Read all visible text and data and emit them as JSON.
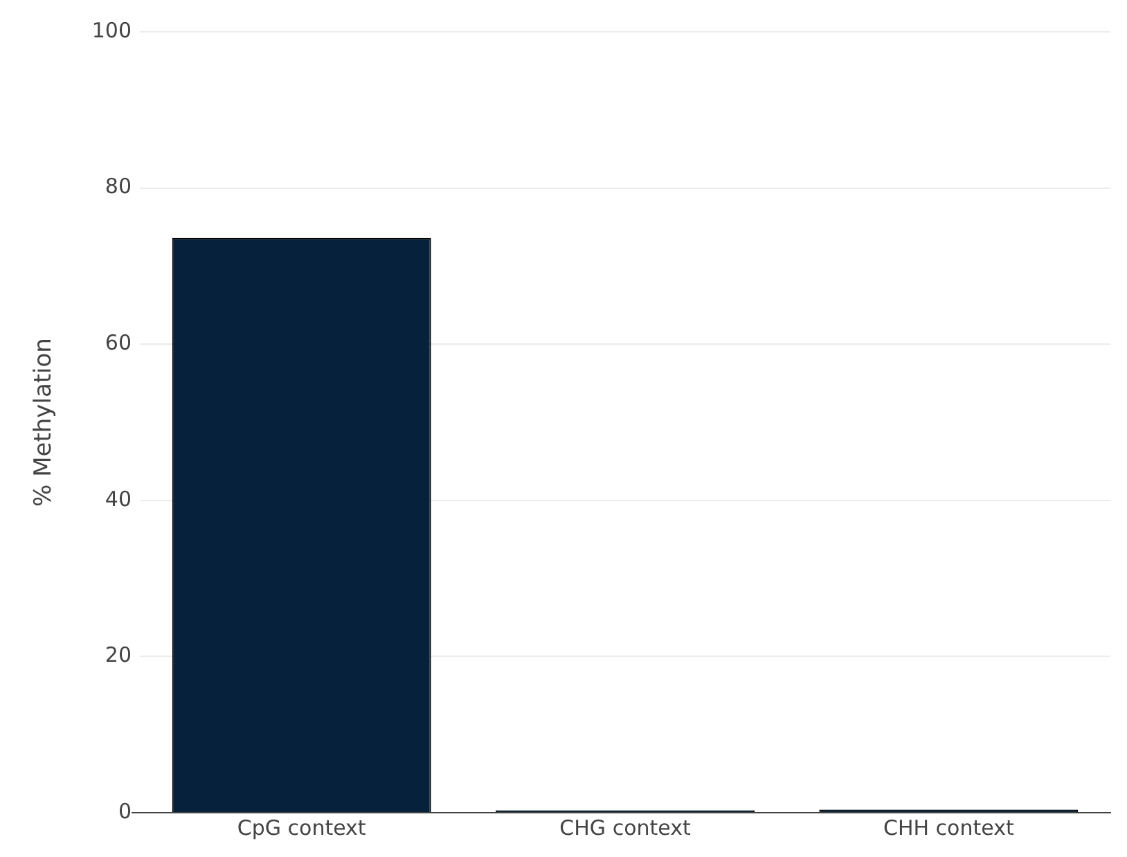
{
  "chart_data": {
    "type": "bar",
    "ylabel": "% Methylation",
    "categories": [
      "CpG context",
      "CHG context",
      "CHH context"
    ],
    "series": [
      {
        "color": "#05213b",
        "values": [
          73.6,
          0.3,
          0.4
        ]
      }
    ],
    "ylim": [
      0,
      100
    ],
    "yticks": [
      0,
      20,
      40,
      60,
      80,
      100
    ],
    "grid": "y",
    "legend": false
  }
}
